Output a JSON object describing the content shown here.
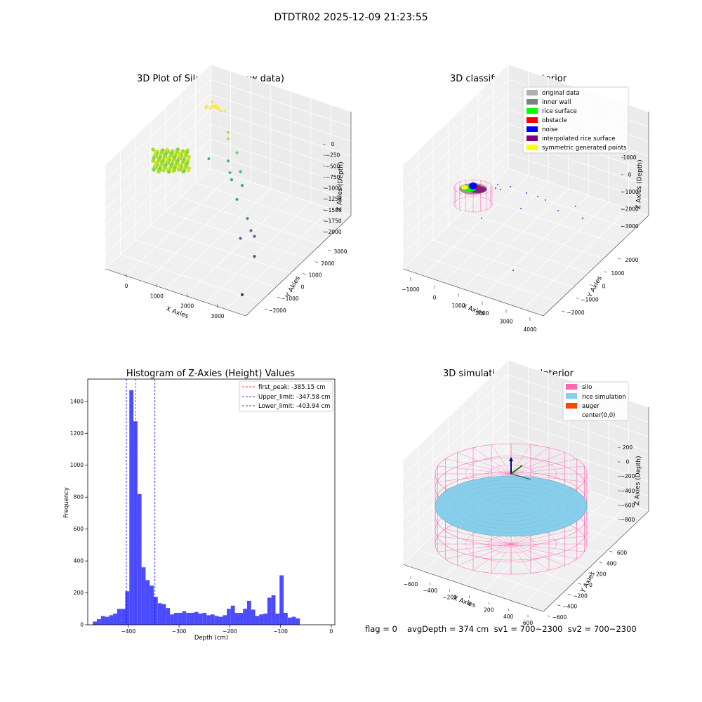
{
  "figure_title": "DTDTR02 2025-12-09 21:23:55",
  "colors": {
    "histogram_bar": "#4b4bff",
    "first_peak_line": "#ff0000",
    "limit_line": "#0000ff",
    "original_data": "#b0b0b0",
    "inner_wall": "#808080",
    "rice_surface": "#00ff00",
    "obstacle": "#ff0000",
    "noise": "#0000ff",
    "interpolated_rice_surface": "#800080",
    "symmetric_generated_points": "#ffff00",
    "silo": "#ff69b4",
    "rice_simulation": "#87ceeb",
    "auger": "#ff4500"
  },
  "chart_data": [
    {
      "type": "scatter",
      "title": "3D Plot of Silo Interior(row data)",
      "xlabel": "X Axies",
      "ylabel": "Y Axies",
      "zlabel": "Z Axies (Depth)",
      "x_ticks": [
        "0",
        "1000",
        "2000",
        "3000"
      ],
      "y_ticks": [
        "−2000",
        "−1000",
        "0",
        "1000",
        "2000",
        "3000"
      ],
      "z_ticks": [
        "0",
        "−250",
        "−500",
        "−750",
        "−1000",
        "−1250",
        "−1500",
        "−1750",
        "−2000"
      ],
      "colormap": "viridis",
      "points_xyz": [
        [
          -250,
          2900,
          -340
        ],
        [
          -200,
          2800,
          -380
        ],
        [
          -150,
          2900,
          -400
        ],
        [
          -300,
          2700,
          -370
        ],
        [
          -100,
          2750,
          -360
        ],
        [
          -50,
          2850,
          -390
        ],
        [
          0,
          2700,
          -350
        ],
        [
          -280,
          2600,
          -360
        ],
        [
          -180,
          2650,
          -370
        ],
        [
          80,
          2700,
          -380
        ],
        [
          150,
          2800,
          -400
        ],
        [
          500,
          2300,
          -600
        ],
        [
          550,
          2200,
          -700
        ],
        [
          900,
          2000,
          -850
        ],
        [
          800,
          1700,
          -950
        ],
        [
          1200,
          1600,
          -1050
        ],
        [
          1000,
          1400,
          -1050
        ],
        [
          1100,
          1300,
          -1150
        ],
        [
          1400,
          1300,
          -1200
        ],
        [
          1500,
          800,
          -1300
        ],
        [
          2000,
          400,
          -1450
        ],
        [
          2200,
          200,
          -1600
        ],
        [
          2400,
          0,
          -1600
        ],
        [
          2100,
          -200,
          -1650
        ],
        [
          2700,
          -600,
          -1750
        ],
        [
          200,
          1800,
          -1100
        ],
        [
          3000,
          -1900,
          -2050
        ]
      ]
    },
    {
      "type": "scatter",
      "title": "3D classify of Silo Interior",
      "xlabel": "X Axies",
      "ylabel": "Y Axies",
      "zlabel": "Z Axies (Depth)",
      "x_ticks": [
        "−1000",
        "0",
        "1000",
        "2000",
        "3000",
        "4000"
      ],
      "y_ticks": [
        "−2000",
        "−1000",
        "0",
        "1000",
        "2000"
      ],
      "z_ticks": [
        "1000",
        "0",
        "−1000",
        "−2000",
        "−3000"
      ],
      "legend": [
        "original data",
        "inner wall",
        "rice surface",
        "obstacle",
        "noise",
        "interpolated rice surface",
        "symmetric generated points"
      ],
      "legend_position": "upper right"
    },
    {
      "type": "bar",
      "title": "Histogram of Z-Axies (Height) Values",
      "xlabel": "Depth (cm)",
      "ylabel": "Frequency",
      "bin_width": 8,
      "bin_starts": [
        -470,
        -462,
        -454,
        -446,
        -438,
        -430,
        -422,
        -414,
        -406,
        -398,
        -390,
        -382,
        -374,
        -366,
        -358,
        -350,
        -342,
        -334,
        -326,
        -318,
        -310,
        -302,
        -294,
        -286,
        -278,
        -270,
        -262,
        -254,
        -246,
        -238,
        -230,
        -222,
        -214,
        -206,
        -198,
        -190,
        -182,
        -174,
        -166,
        -158,
        -150,
        -142,
        -134,
        -126,
        -118,
        -110,
        -102,
        -94,
        -86,
        -78,
        -70,
        -62,
        -54,
        -46,
        -38,
        -30,
        -22,
        -14,
        -6
      ],
      "values": [
        20,
        35,
        55,
        50,
        60,
        70,
        100,
        100,
        210,
        1470,
        1275,
        820,
        360,
        280,
        245,
        175,
        135,
        130,
        105,
        65,
        75,
        75,
        85,
        75,
        75,
        80,
        70,
        75,
        60,
        65,
        55,
        50,
        60,
        100,
        120,
        75,
        75,
        100,
        150,
        95,
        55,
        65,
        70,
        170,
        185,
        70,
        310,
        75,
        45,
        50,
        40,
        0,
        0,
        0,
        0,
        0,
        0,
        0,
        0
      ],
      "xlim": [
        -480,
        7
      ],
      "ylim": [
        0,
        1540
      ],
      "x_ticks": [
        "−400",
        "−300",
        "−200",
        "−100",
        "0"
      ],
      "y_ticks": [
        "0",
        "200",
        "400",
        "600",
        "800",
        "1000",
        "1200",
        "1400"
      ],
      "vlines": [
        {
          "name": "first_peak: -385.15 cm",
          "x": -385.15
        },
        {
          "name": "Upper_limit: -347.58 cm",
          "x": -347.58
        },
        {
          "name": "Lower_limit: -403.94 cm",
          "x": -403.94
        }
      ],
      "legend": [
        "first_peak: -385.15 cm",
        "Upper_limit: -347.58 cm",
        "Lower_limit: -403.94 cm"
      ],
      "legend_position": "upper right"
    },
    {
      "type": "scatter",
      "title": "3D simulation of Silo Interior",
      "xlabel": "X Axies",
      "ylabel": "Y Axies",
      "zlabel": "Z Axies (Depth)",
      "x_ticks": [
        "−600",
        "−400",
        "−200",
        "0",
        "200",
        "400",
        "600"
      ],
      "y_ticks": [
        "−600",
        "−400",
        "−200",
        "0",
        "200",
        "400",
        "600"
      ],
      "z_ticks": [
        "200",
        "0",
        "−200",
        "−400",
        "−600",
        "−800"
      ],
      "legend": [
        "silo",
        "rice simulation",
        "auger",
        "center(0,0)"
      ],
      "legend_position": "upper right"
    }
  ],
  "footer": {
    "flag": "flag = 0",
    "stats": "avgDepth = 374 cm  sv1 = 700~2300  sv2 = 700~2300"
  }
}
